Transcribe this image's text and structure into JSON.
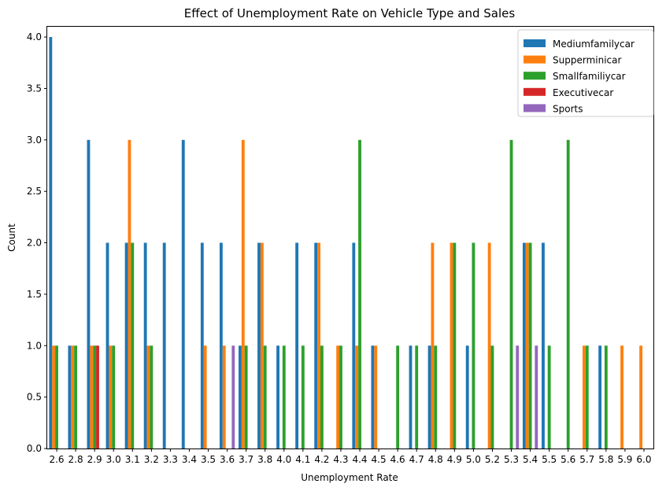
{
  "chart_data": {
    "type": "bar",
    "title": "Effect of Unemployment Rate on Vehicle Type and Sales",
    "xlabel": "Unemployment Rate",
    "ylabel": "Count",
    "ylim": [
      0,
      4.1
    ],
    "yticks": [
      "0.0",
      "0.5",
      "1.0",
      "1.5",
      "2.0",
      "2.5",
      "3.0",
      "3.5",
      "4.0"
    ],
    "grid": false,
    "legend_position": "top-right",
    "categories": [
      "2.6",
      "2.8",
      "2.9",
      "3.0",
      "3.1",
      "3.2",
      "3.3",
      "3.4",
      "3.5",
      "3.6",
      "3.7",
      "3.8",
      "4.0",
      "4.1",
      "4.2",
      "4.3",
      "4.4",
      "4.5",
      "4.6",
      "4.7",
      "4.8",
      "4.9",
      "5.0",
      "5.2",
      "5.3",
      "5.4",
      "5.5",
      "5.6",
      "5.7",
      "5.8",
      "5.9",
      "6.0"
    ],
    "series": [
      {
        "name": "Mediumfamilycar",
        "color": "#1f77b4",
        "values": [
          4,
          1,
          3,
          2,
          2,
          2,
          2,
          3,
          2,
          2,
          1,
          2,
          1,
          2,
          2,
          0,
          2,
          1,
          0,
          1,
          1,
          0,
          1,
          0,
          0,
          2,
          2,
          0,
          0,
          1,
          0,
          0
        ]
      },
      {
        "name": "Supperminicar",
        "color": "#ff7f0e",
        "values": [
          1,
          1,
          1,
          1,
          3,
          1,
          0,
          0,
          1,
          1,
          3,
          2,
          0,
          0,
          2,
          1,
          1,
          1,
          0,
          0,
          2,
          2,
          0,
          2,
          0,
          2,
          0,
          0,
          1,
          0,
          1,
          1
        ]
      },
      {
        "name": "Smallfamiliycar",
        "color": "#2ca02c",
        "values": [
          1,
          1,
          1,
          1,
          2,
          1,
          0,
          0,
          0,
          0,
          1,
          1,
          1,
          1,
          1,
          1,
          3,
          0,
          1,
          1,
          1,
          2,
          2,
          1,
          3,
          2,
          1,
          3,
          1,
          1,
          0,
          0
        ]
      },
      {
        "name": "Executivecar",
        "color": "#d62728",
        "values": [
          0,
          0,
          1,
          0,
          0,
          0,
          0,
          0,
          0,
          0,
          0,
          0,
          0,
          0,
          0,
          0,
          0,
          0,
          0,
          0,
          0,
          0,
          0,
          0,
          0,
          0,
          0,
          0,
          0,
          0,
          0,
          0
        ]
      },
      {
        "name": "Sports",
        "color": "#9467bd",
        "values": [
          0,
          0,
          0,
          0,
          0,
          0,
          0,
          0,
          0,
          1,
          0,
          0,
          0,
          0,
          0,
          0,
          0,
          0,
          0,
          0,
          0,
          0,
          0,
          0,
          1,
          1,
          0,
          0,
          0,
          0,
          0,
          0
        ]
      }
    ]
  }
}
